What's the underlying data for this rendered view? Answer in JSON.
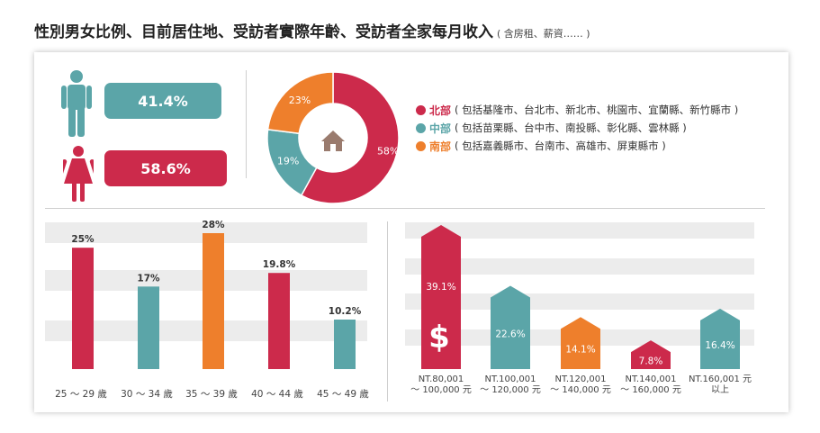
{
  "title": "性別男女比例、目前居住地、受訪者實際年齡、受訪者全家每月收入",
  "title_note": "( 含房租、薪資…… )",
  "colors": {
    "red": "#cc2a4b",
    "teal": "#5ba5a8",
    "orange": "#ee7f2c",
    "gray_band": "#ececec"
  },
  "icons": [
    "male-icon",
    "female-icon",
    "house-icon",
    "dollar-icon"
  ],
  "chart_data": [
    {
      "type": "bar",
      "name_key": "gender",
      "categories": [
        "男",
        "女"
      ],
      "values": [
        41.4,
        58.6
      ],
      "labels": [
        "41.4%",
        "58.6%"
      ],
      "colors": [
        "#5ba5a8",
        "#cc2a4b"
      ]
    },
    {
      "type": "pie",
      "name_key": "region",
      "categories": [
        "北部",
        "中部",
        "南部"
      ],
      "values": [
        58,
        19,
        23
      ],
      "labels": [
        "58%",
        "19%",
        "23%"
      ],
      "details": [
        "( 包括基隆市、台北市、新北市、桃園市、宜蘭縣、新竹縣市 )",
        "( 包括苗栗縣、台中市、南投縣、彰化縣、雲林縣 )",
        "( 包括嘉義縣市、台南市、高雄市、屏東縣市 )"
      ],
      "colors": [
        "#cc2a4b",
        "#5ba5a8",
        "#ee7f2c"
      ],
      "legend_position": "right"
    },
    {
      "type": "bar",
      "name_key": "age",
      "categories": [
        "25 ～ 29 歲",
        "30 ～ 34 歲",
        "35 ～ 39 歲",
        "40 ～ 44 歲",
        "45 ～ 49 歲"
      ],
      "values": [
        25,
        17,
        28,
        19.8,
        10.2
      ],
      "labels": [
        "25%",
        "17%",
        "28%",
        "19.8%",
        "10.2%"
      ],
      "colors": [
        "#cc2a4b",
        "#5ba5a8",
        "#ee7f2c",
        "#cc2a4b",
        "#5ba5a8"
      ],
      "ylim": [
        0,
        28
      ],
      "grid": "horizontal bands"
    },
    {
      "type": "bar",
      "name_key": "income",
      "categories": [
        [
          "NT.80,001",
          "～ 100,000 元"
        ],
        [
          "NT.100,001",
          "～ 120,000 元"
        ],
        [
          "NT.120,001",
          "～ 140,000 元"
        ],
        [
          "NT.140,001",
          "～ 160,000 元"
        ],
        [
          "NT.160,001 元",
          "以上"
        ]
      ],
      "values": [
        39.1,
        22.6,
        14.1,
        7.8,
        16.4
      ],
      "labels": [
        "39.1%",
        "22.6%",
        "14.1%",
        "7.8%",
        "16.4%"
      ],
      "colors": [
        "#cc2a4b",
        "#5ba5a8",
        "#ee7f2c",
        "#cc2a4b",
        "#5ba5a8"
      ],
      "ylim": [
        0,
        39.1
      ],
      "grid": "horizontal bands"
    }
  ]
}
